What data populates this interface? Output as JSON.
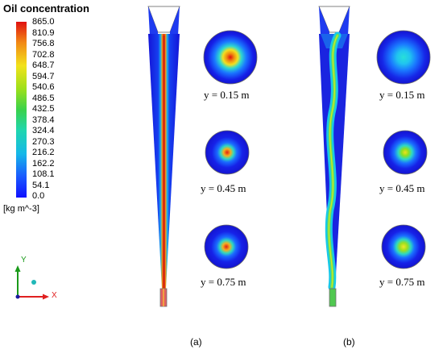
{
  "legend": {
    "title": "Oil concentration",
    "ticks": [
      "865.0",
      "810.9",
      "756.8",
      "702.8",
      "648.7",
      "594.7",
      "540.6",
      "486.5",
      "432.5",
      "378.4",
      "324.4",
      "270.3",
      "216.2",
      "162.2",
      "108.1",
      "54.1",
      "0.0"
    ],
    "units": "[kg m^-3]"
  },
  "axes": {
    "y": "Y",
    "x": "X"
  },
  "panels": [
    {
      "label": "(a)",
      "sections": [
        {
          "label": "y = 0.15 m"
        },
        {
          "label": "y = 0.45 m"
        },
        {
          "label": "y = 0.75 m"
        }
      ]
    },
    {
      "label": "(b)",
      "sections": [
        {
          "label": "y = 0.15 m"
        },
        {
          "label": "y = 0.45 m"
        },
        {
          "label": "y = 0.75 m"
        }
      ]
    }
  ]
}
